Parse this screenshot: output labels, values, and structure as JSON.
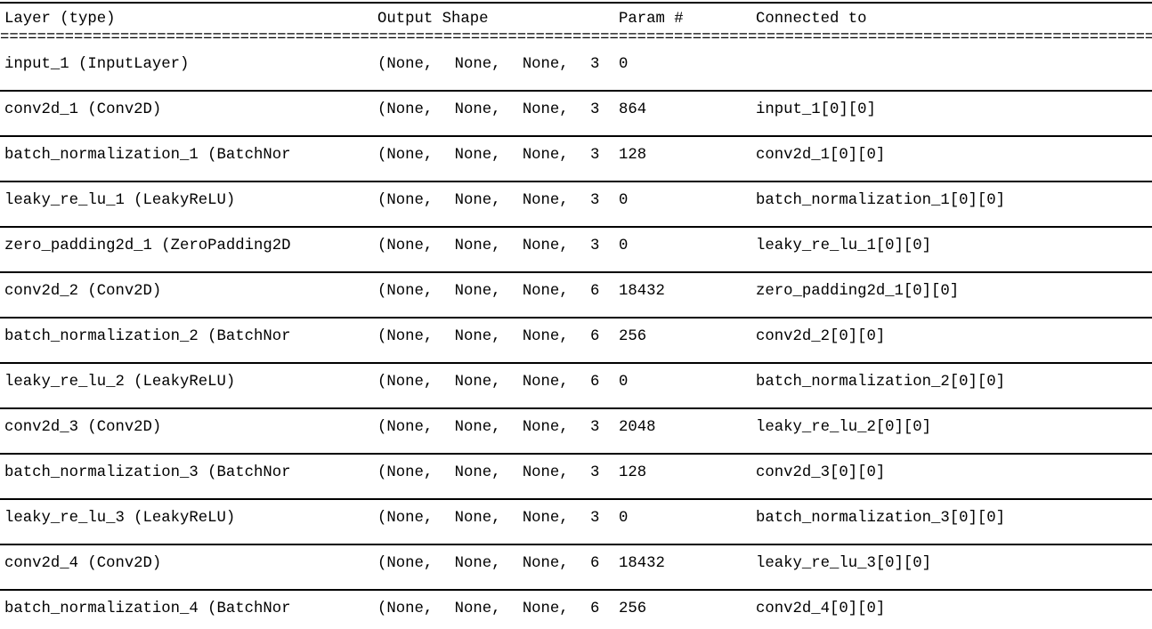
{
  "table": {
    "columns": [
      {
        "label": "Layer (type)"
      },
      {
        "label": "Output Shape"
      },
      {
        "label": "Param #"
      },
      {
        "label": "Connected to"
      }
    ],
    "double_rule": "=============================================================================================================================",
    "rows": [
      {
        "layer": "input_1 (InputLayer)",
        "shape": "(None, None, None, 3",
        "params": "0",
        "connected": ""
      },
      {
        "layer": "conv2d_1 (Conv2D)",
        "shape": "(None, None, None, 3",
        "params": "864",
        "connected": "input_1[0][0]"
      },
      {
        "layer": "batch_normalization_1 (BatchNor",
        "shape": "(None, None, None, 3",
        "params": "128",
        "connected": "conv2d_1[0][0]"
      },
      {
        "layer": "leaky_re_lu_1 (LeakyReLU)",
        "shape": "(None, None, None, 3",
        "params": "0",
        "connected": "batch_normalization_1[0][0]"
      },
      {
        "layer": "zero_padding2d_1 (ZeroPadding2D",
        "shape": "(None, None, None, 3",
        "params": "0",
        "connected": "leaky_re_lu_1[0][0]"
      },
      {
        "layer": "conv2d_2 (Conv2D)",
        "shape": "(None, None, None, 6",
        "params": "18432",
        "connected": "zero_padding2d_1[0][0]"
      },
      {
        "layer": "batch_normalization_2 (BatchNor",
        "shape": "(None, None, None, 6",
        "params": "256",
        "connected": "conv2d_2[0][0]"
      },
      {
        "layer": "leaky_re_lu_2 (LeakyReLU)",
        "shape": "(None, None, None, 6",
        "params": "0",
        "connected": "batch_normalization_2[0][0]"
      },
      {
        "layer": "conv2d_3 (Conv2D)",
        "shape": "(None, None, None, 3",
        "params": "2048",
        "connected": "leaky_re_lu_2[0][0]"
      },
      {
        "layer": "batch_normalization_3 (BatchNor",
        "shape": "(None, None, None, 3",
        "params": "128",
        "connected": "conv2d_3[0][0]"
      },
      {
        "layer": "leaky_re_lu_3 (LeakyReLU)",
        "shape": "(None, None, None, 3",
        "params": "0",
        "connected": "batch_normalization_3[0][0]"
      },
      {
        "layer": "conv2d_4 (Conv2D)",
        "shape": "(None, None, None, 6",
        "params": "18432",
        "connected": "leaky_re_lu_3[0][0]"
      },
      {
        "layer": "batch_normalization_4 (BatchNor",
        "shape": "(None, None, None, 6",
        "params": "256",
        "connected": "conv2d_4[0][0]"
      }
    ],
    "colors": {
      "text": "#000000",
      "background": "#ffffff",
      "rule": "#000000"
    }
  }
}
